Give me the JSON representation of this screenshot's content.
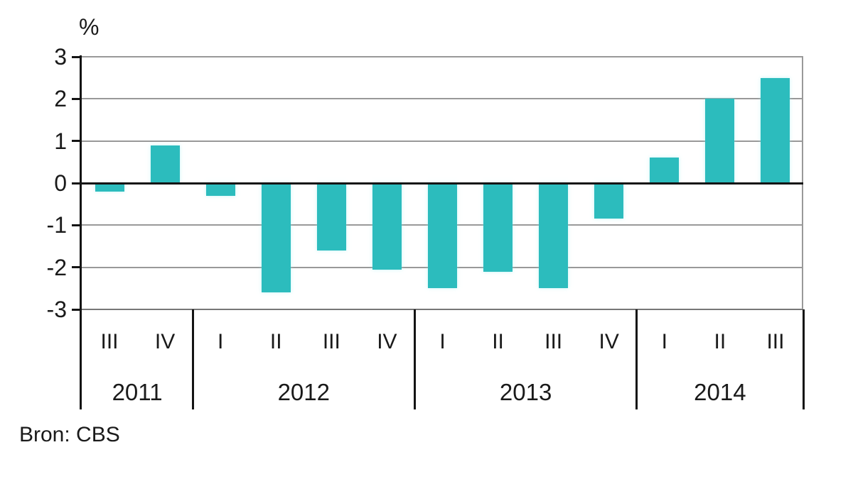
{
  "chart_data": {
    "type": "bar",
    "title": "",
    "unit_label": "%",
    "source": "Bron: CBS",
    "ylim": [
      -3,
      3
    ],
    "yticks": [
      3,
      2,
      1,
      0,
      -1,
      -2,
      -3
    ],
    "grid": true,
    "legend_position": "none",
    "colors": {
      "bar": "#2CBCBD",
      "gridline": "#999999",
      "baseline": "#777777",
      "axis": "#141414",
      "text": "#1a1a1a"
    },
    "categories": [
      "2011-III",
      "2011-IV",
      "2012-I",
      "2012-II",
      "2012-III",
      "2012-IV",
      "2013-I",
      "2013-II",
      "2013-III",
      "2013-IV",
      "2014-I",
      "2014-II",
      "2014-III"
    ],
    "values": [
      -0.2,
      0.9,
      -0.3,
      -2.6,
      -1.6,
      -2.05,
      -2.5,
      -2.1,
      -2.5,
      -0.85,
      0.6,
      2.0,
      2.5
    ],
    "year_groups": [
      {
        "year": "2011",
        "quarters": [
          "III",
          "IV"
        ]
      },
      {
        "year": "2012",
        "quarters": [
          "I",
          "II",
          "III",
          "IV"
        ]
      },
      {
        "year": "2013",
        "quarters": [
          "I",
          "II",
          "III",
          "IV"
        ]
      },
      {
        "year": "2014",
        "quarters": [
          "I",
          "II",
          "III"
        ]
      }
    ]
  }
}
